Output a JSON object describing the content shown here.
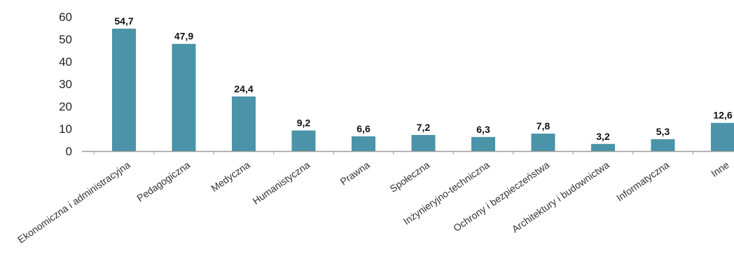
{
  "chart_data": {
    "type": "bar",
    "categories": [
      "Ekonomiczna i administracyjna",
      "Pedagogiczna",
      "Medyczna",
      "Humanistyczna",
      "Prawna",
      "Społeczna",
      "Inżynieryjno-techniczna",
      "Ochrony i bezpieczeństwa",
      "Architektury i budownictwa",
      "Informatyczna",
      "Inne"
    ],
    "values": [
      54.7,
      47.9,
      24.4,
      9.2,
      6.6,
      7.2,
      6.3,
      7.8,
      3.2,
      5.3,
      12.6
    ],
    "value_labels": [
      "54,7",
      "47,9",
      "24,4",
      "9,2",
      "6,6",
      "7,2",
      "6,3",
      "7,8",
      "3,2",
      "5,3",
      "12,6"
    ],
    "yticks": [
      0,
      10,
      20,
      30,
      40,
      50,
      60
    ],
    "ylim": [
      0,
      60
    ],
    "grid": false,
    "legend": "none",
    "colors": {
      "bar": "#4a93a9",
      "axis": "#9a9a9a"
    }
  }
}
